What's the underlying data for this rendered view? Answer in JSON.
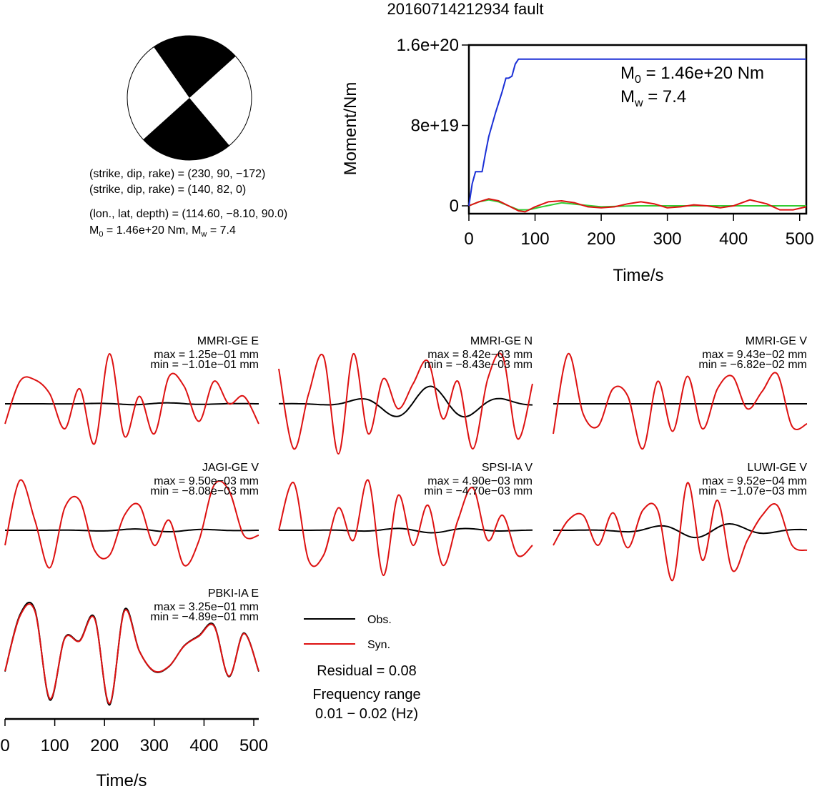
{
  "title": "20160714212934 fault",
  "mechanism": {
    "np1": "(strike, dip, rake) = (230, 90, −172)",
    "np2": "(strike, dip, rake) = (140, 82, 0)",
    "location": "(lon., lat, depth) = (114.60, −8.10, 90.0)",
    "moment_prefix": "M",
    "moment_sub": "0",
    "moment_value": " = 1.46e+20 Nm, M",
    "mw_sub": "w",
    "mw_value": " = 7.4"
  },
  "moment_plot": {
    "ylabel": "Moment/Nm",
    "xlabel": "Time/s",
    "yticks": [
      "0",
      "8e+19",
      "1.6e+20"
    ],
    "xticks": [
      "0",
      "100",
      "200",
      "300",
      "400",
      "500"
    ],
    "m0_prefix": "M",
    "m0_sub": "0",
    "m0_value": " = 1.46e+20 Nm",
    "mw_prefix": "M",
    "mw_sub": "w",
    "mw_value": " = 7.4"
  },
  "waveform_axis": {
    "xlabel": "Time/s",
    "xticks": [
      "0",
      "100",
      "200",
      "300",
      "400",
      "500"
    ]
  },
  "legend": {
    "obs_label": "Obs.",
    "syn_label": "Syn.",
    "residual": "Residual = 0.08",
    "freq_title": "Frequency range",
    "freq_range": "0.01 − 0.02 (Hz)"
  },
  "colors": {
    "observed": "#000000",
    "synthetic": "#dd1111",
    "moment_total": "#1a2fd6",
    "moment_red": "#dd1111",
    "moment_green": "#33cc33",
    "moment_olive": "#8a7a10",
    "beachball_fill": "#000000"
  },
  "chart_data": [
    {
      "type": "line",
      "name": "moment-rate",
      "xlim": [
        0,
        510
      ],
      "ylim": [
        -1e+19,
        1.6e+20
      ],
      "series": [
        {
          "color": "#1a2fd6",
          "x": [
            0,
            5,
            10,
            14,
            20,
            25,
            30,
            40,
            50,
            56,
            60,
            65,
            70,
            75,
            80,
            100,
            200,
            300,
            400,
            510
          ],
          "y": [
            0,
            2.2e+19,
            3.4e+19,
            3.4e+19,
            3.4e+19,
            5.2e+19,
            6.9e+19,
            9.2e+19,
            1.13e+20,
            1.27e+20,
            1.27e+20,
            1.29e+20,
            1.41e+20,
            1.46e+20,
            1.46e+20,
            1.46e+20,
            1.46e+20,
            1.46e+20,
            1.46e+20,
            1.46e+20
          ]
        },
        {
          "color": "#dd1111",
          "x": [
            0,
            15,
            30,
            45,
            60,
            75,
            85,
            100,
            120,
            140,
            160,
            180,
            200,
            220,
            240,
            260,
            280,
            300,
            320,
            340,
            360,
            380,
            400,
            425,
            450,
            470,
            490,
            510
          ],
          "y": [
            0,
            4e+18,
            7e+18,
            5e+18,
            0,
            -5e+18,
            -6e+18,
            -1e+18,
            4e+18,
            5e+18,
            3e+18,
            -1e+18,
            -2e+18,
            -1e+18,
            2e+18,
            4e+18,
            2e+18,
            -2e+18,
            -1e+18,
            1e+18,
            0,
            -2e+18,
            0,
            6e+18,
            2e+18,
            -4e+18,
            -4e+18,
            -1e+18
          ]
        },
        {
          "color": "#33cc33",
          "x": [
            0,
            15,
            30,
            45,
            60,
            75,
            90,
            110,
            140,
            170,
            200,
            250,
            300,
            350,
            400,
            450,
            510
          ],
          "y": [
            0,
            4e+18,
            6e+18,
            4e+18,
            0,
            -4e+18,
            -4e+18,
            -1e+18,
            3e+18,
            1e+18,
            -1e+18,
            0,
            0,
            0,
            0,
            0,
            0
          ]
        }
      ]
    },
    {
      "type": "line",
      "name": "waveforms",
      "xlim": [
        0,
        510
      ],
      "traces": [
        {
          "station": "MMRI-GE E",
          "max": "max = 1.25e−01 mm",
          "min": "min = −1.01e−01 mm",
          "obs_amp": 0.02,
          "syn": [
            -0.4,
            0.45,
            0.48,
            0.2,
            -0.5,
            0.3,
            -0.8,
            1.0,
            -0.65,
            0.15,
            -0.6,
            0.55,
            0.35,
            -0.35,
            0.45,
            0.0,
            0.15,
            -0.4
          ]
        },
        {
          "station": "MMRI-GE N",
          "max": "max = 8.42e−03 mm",
          "min": "min = −8.43e−03 mm",
          "obs_amp": 0.35,
          "syn": [
            0.7,
            -0.9,
            0.2,
            0.95,
            -1.0,
            1.0,
            -0.6,
            0.5,
            -0.1,
            0.4,
            0.85,
            -0.3,
            0.45,
            -0.9,
            0.5,
            0.95,
            -0.7,
            0.4
          ]
        },
        {
          "station": "MMRI-GE V",
          "max": "max = 9.43e−02 mm",
          "min": "min = −6.82e−02 mm",
          "obs_amp": 0.0,
          "syn": [
            -0.6,
            1.0,
            -0.2,
            -0.45,
            0.3,
            0.15,
            -0.9,
            0.45,
            -0.55,
            0.55,
            -0.5,
            0.3,
            0.55,
            -0.1,
            0.25,
            0.6,
            -0.45,
            -0.4
          ]
        },
        {
          "station": "JAGI-GE V",
          "max": "max = 9.50e−03 mm",
          "min": "min = −8.08e−03 mm",
          "obs_amp": 0.03,
          "syn": [
            -0.3,
            1.0,
            0.2,
            -0.75,
            0.45,
            0.6,
            -0.4,
            -0.5,
            0.3,
            0.5,
            -0.3,
            0.2,
            -0.7,
            -0.2,
            0.9,
            0.8,
            -0.1,
            -0.1
          ]
        },
        {
          "station": "SPSI-IA V",
          "max": "max = 4.90e−03 mm",
          "min": "min = −4.70e−03 mm",
          "obs_amp": 0.05,
          "syn": [
            0.0,
            0.95,
            -0.6,
            -0.5,
            0.45,
            -0.2,
            1.0,
            -0.9,
            0.7,
            -0.3,
            0.5,
            -0.7,
            0.2,
            0.85,
            -0.2,
            0.3,
            -0.5,
            -0.3
          ]
        },
        {
          "station": "LUWI-GE V",
          "max": "max = 9.52e−04 mm",
          "min": "min = −1.07e−03 mm",
          "obs_amp": 0.15,
          "syn": [
            -0.3,
            0.2,
            0.3,
            -0.3,
            0.35,
            -0.35,
            0.4,
            0.4,
            -1.0,
            0.95,
            -0.6,
            0.6,
            -0.8,
            -0.2,
            0.3,
            0.5,
            -0.3,
            -0.4
          ]
        },
        {
          "station": "PBKI-IA E",
          "max": "max = 3.25e−01 mm",
          "min": "min = −4.89e−01 mm",
          "obs_amp": 1.0,
          "syn": [
            -0.3,
            0.8,
            0.9,
            -0.85,
            0.35,
            0.3,
            0.75,
            -0.95,
            0.9,
            0.1,
            -0.3,
            -0.2,
            0.2,
            0.4,
            0.6,
            -0.4,
            0.45,
            -0.3
          ]
        }
      ]
    }
  ]
}
